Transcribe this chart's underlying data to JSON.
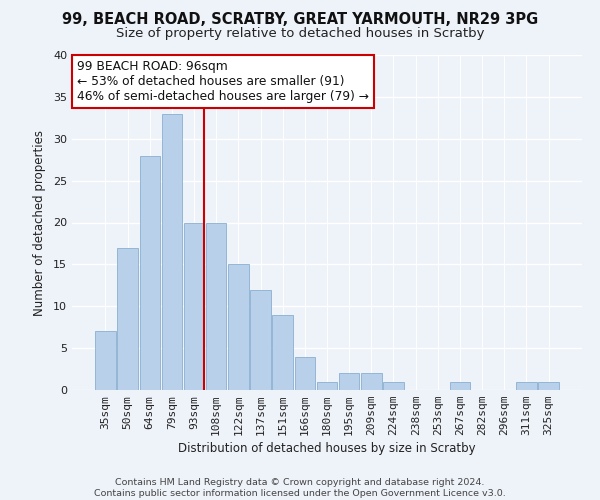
{
  "title": "99, BEACH ROAD, SCRATBY, GREAT YARMOUTH, NR29 3PG",
  "subtitle": "Size of property relative to detached houses in Scratby",
  "xlabel": "Distribution of detached houses by size in Scratby",
  "ylabel": "Number of detached properties",
  "footer_line1": "Contains HM Land Registry data © Crown copyright and database right 2024.",
  "footer_line2": "Contains public sector information licensed under the Open Government Licence v3.0.",
  "bar_color": "#b8d0ea",
  "bar_edge_color": "#8ab0d0",
  "highlight_line_color": "#cc0000",
  "annotation_line1": "99 BEACH ROAD: 96sqm",
  "annotation_line2": "← 53% of detached houses are smaller (91)",
  "annotation_line3": "46% of semi-detached houses are larger (79) →",
  "annotation_box_edge": "#cc0000",
  "categories": [
    "35sqm",
    "50sqm",
    "64sqm",
    "79sqm",
    "93sqm",
    "108sqm",
    "122sqm",
    "137sqm",
    "151sqm",
    "166sqm",
    "180sqm",
    "195sqm",
    "209sqm",
    "224sqm",
    "238sqm",
    "253sqm",
    "267sqm",
    "282sqm",
    "296sqm",
    "311sqm",
    "325sqm"
  ],
  "values": [
    7,
    17,
    28,
    33,
    20,
    20,
    15,
    12,
    9,
    4,
    1,
    2,
    2,
    1,
    0,
    0,
    1,
    0,
    0,
    1,
    1
  ],
  "highlight_index": 3,
  "ylim": [
    0,
    40
  ],
  "yticks": [
    0,
    5,
    10,
    15,
    20,
    25,
    30,
    35,
    40
  ],
  "background_color": "#eef2f9",
  "title_fontsize": 10.5,
  "subtitle_fontsize": 9.5,
  "axis_fontsize": 8.5,
  "tick_fontsize": 8.0,
  "footer_fontsize": 6.8
}
